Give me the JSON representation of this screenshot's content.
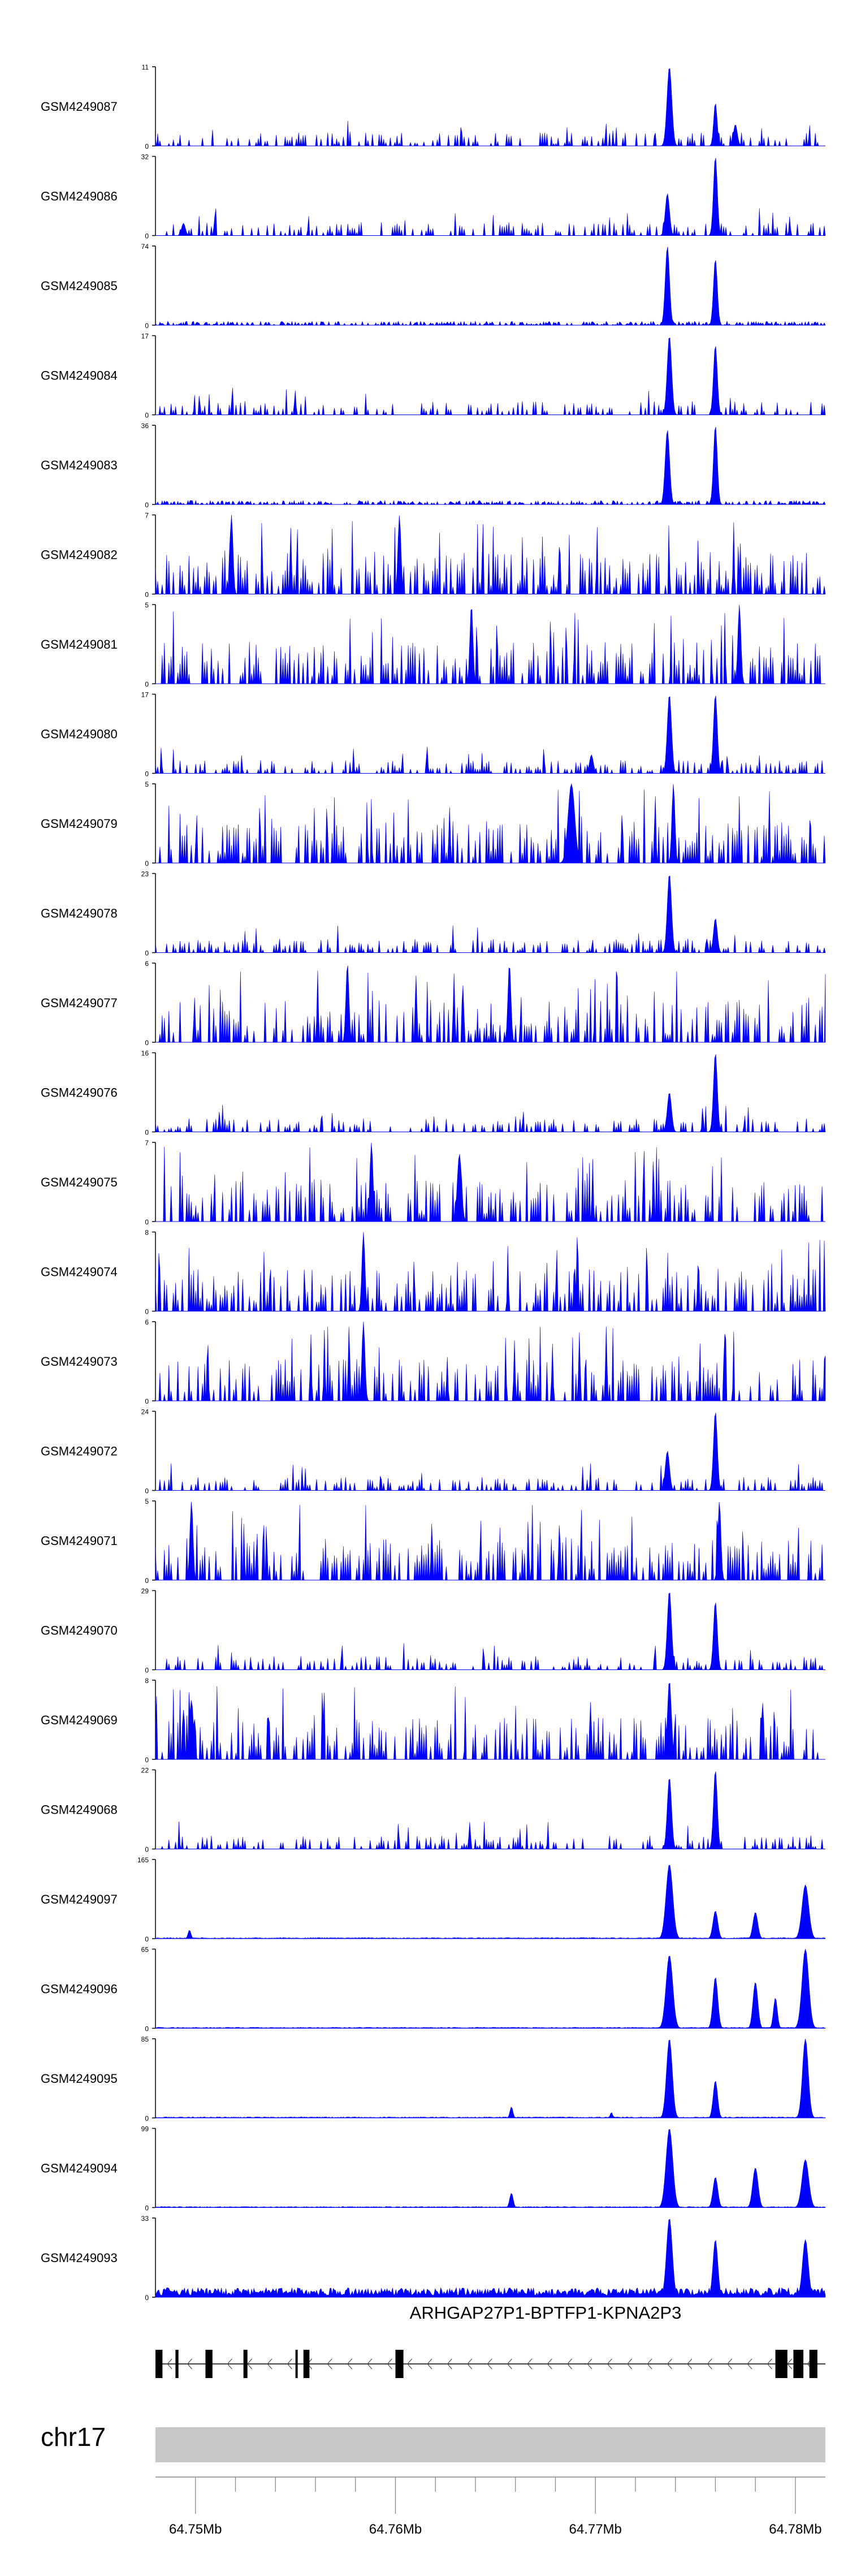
{
  "colors": {
    "signal": "#0000ff",
    "axis": "#000000",
    "ideogram": "#c8c8c8",
    "gene": "#000000"
  },
  "chart_data": {
    "type": "area",
    "xlabel": "",
    "ylabel": "",
    "x_range_bp": [
      64748000,
      64781500
    ],
    "ticks": {
      "values_bp": [
        64750000,
        64752000,
        64754000,
        64756000,
        64758000,
        64760000,
        64762000,
        64764000,
        64766000,
        64768000,
        64770000,
        64772000,
        64774000,
        64776000,
        64778000,
        64780000
      ],
      "labels": [
        {
          "bp": 64750000,
          "text": "64.75Mb"
        },
        {
          "bp": 64760000,
          "text": "64.76Mb"
        },
        {
          "bp": 64770000,
          "text": "64.77Mb"
        },
        {
          "bp": 64780000,
          "text": "64.78Mb"
        }
      ]
    },
    "chromosome": "chr17",
    "gene": {
      "name": "ARHGAP27P1-BPTFP1-KPNA2P3",
      "strand": "-",
      "start_bp": 64748000,
      "end_bp": 64781500,
      "exons_bp": [
        [
          64748000,
          64748350
        ],
        [
          64749000,
          64749150
        ],
        [
          64750500,
          64750850
        ],
        [
          64752400,
          64752600
        ],
        [
          64755000,
          64755100
        ],
        [
          64755400,
          64755700
        ],
        [
          64760000,
          64760400
        ],
        [
          64779000,
          64779600
        ],
        [
          64779900,
          64780400
        ],
        [
          64780700,
          64781100
        ]
      ]
    },
    "series": [
      {
        "name": "GSM4249087",
        "ymax": 11,
        "style": "sparse",
        "seed": 87,
        "peaks": [
          [
            64773700,
            11,
            250
          ],
          [
            64776000,
            6,
            180
          ],
          [
            64777000,
            3,
            200
          ]
        ]
      },
      {
        "name": "GSM4249086",
        "ymax": 32,
        "style": "sparse",
        "seed": 86,
        "peaks": [
          [
            64773600,
            17,
            220
          ],
          [
            64776000,
            32,
            200
          ],
          [
            64749400,
            5,
            200
          ]
        ]
      },
      {
        "name": "GSM4249085",
        "ymax": 74,
        "style": "lowbase",
        "seed": 85,
        "peaks": [
          [
            64773600,
            74,
            220
          ],
          [
            64776000,
            62,
            200
          ]
        ]
      },
      {
        "name": "GSM4249084",
        "ymax": 17,
        "style": "sparse",
        "seed": 84,
        "peaks": [
          [
            64773700,
            17,
            230
          ],
          [
            64776000,
            15,
            200
          ]
        ]
      },
      {
        "name": "GSM4249083",
        "ymax": 36,
        "style": "lowbase",
        "seed": 83,
        "peaks": [
          [
            64773600,
            34,
            230
          ],
          [
            64776000,
            36,
            200
          ]
        ]
      },
      {
        "name": "GSM4249082",
        "ymax": 7,
        "style": "noisy",
        "seed": 82,
        "peaks": [
          [
            64751800,
            7,
            160
          ],
          [
            64760200,
            7,
            160
          ]
        ]
      },
      {
        "name": "GSM4249081",
        "ymax": 5,
        "style": "noisy",
        "seed": 81,
        "peaks": [
          [
            64763800,
            5,
            160
          ],
          [
            64777200,
            5,
            160
          ]
        ]
      },
      {
        "name": "GSM4249080",
        "ymax": 17,
        "style": "sparse",
        "seed": 80,
        "peaks": [
          [
            64773700,
            17,
            220
          ],
          [
            64776000,
            17,
            200
          ],
          [
            64769800,
            4,
            200
          ]
        ]
      },
      {
        "name": "GSM4249079",
        "ymax": 5,
        "style": "noisy",
        "seed": 79,
        "peaks": [
          [
            64768800,
            5,
            350
          ],
          [
            64773900,
            5,
            160
          ]
        ]
      },
      {
        "name": "GSM4249078",
        "ymax": 23,
        "style": "sparse",
        "seed": 78,
        "peaks": [
          [
            64773700,
            23,
            220
          ],
          [
            64776000,
            10,
            200
          ]
        ]
      },
      {
        "name": "GSM4249077",
        "ymax": 6,
        "style": "noisy",
        "seed": 77,
        "peaks": [
          [
            64765700,
            6,
            160
          ],
          [
            64757600,
            6,
            160
          ]
        ]
      },
      {
        "name": "GSM4249076",
        "ymax": 16,
        "style": "sparse",
        "seed": 76,
        "peaks": [
          [
            64773700,
            8,
            220
          ],
          [
            64776000,
            16,
            200
          ]
        ]
      },
      {
        "name": "GSM4249075",
        "ymax": 7,
        "style": "noisy",
        "seed": 75,
        "peaks": [
          [
            64758800,
            7,
            160
          ],
          [
            64763200,
            6,
            220
          ]
        ]
      },
      {
        "name": "GSM4249074",
        "ymax": 8,
        "style": "noisy",
        "seed": 74,
        "peaks": [
          [
            64758400,
            8,
            160
          ]
        ]
      },
      {
        "name": "GSM4249073",
        "ymax": 6,
        "style": "noisy",
        "seed": 73,
        "peaks": [
          [
            64758400,
            6,
            160
          ]
        ]
      },
      {
        "name": "GSM4249072",
        "ymax": 24,
        "style": "sparse",
        "seed": 72,
        "peaks": [
          [
            64773600,
            12,
            220
          ],
          [
            64776000,
            24,
            200
          ]
        ]
      },
      {
        "name": "GSM4249071",
        "ymax": 5,
        "style": "noisy",
        "seed": 71,
        "peaks": [
          [
            64749800,
            5,
            160
          ],
          [
            64776200,
            5,
            160
          ]
        ]
      },
      {
        "name": "GSM4249070",
        "ymax": 29,
        "style": "sparse",
        "seed": 70,
        "peaks": [
          [
            64773700,
            29,
            220
          ],
          [
            64776000,
            25,
            200
          ]
        ]
      },
      {
        "name": "GSM4249069",
        "ymax": 8,
        "style": "noisy",
        "seed": 69,
        "peaks": [
          [
            64773700,
            8,
            200
          ],
          [
            64749800,
            6,
            200
          ]
        ]
      },
      {
        "name": "GSM4249068",
        "ymax": 22,
        "style": "sparse",
        "seed": 68,
        "peaks": [
          [
            64773700,
            20,
            220
          ],
          [
            64776000,
            22,
            200
          ]
        ]
      },
      {
        "name": "GSM4249097",
        "ymax": 165,
        "style": "smooth",
        "seed": 97,
        "peaks": [
          [
            64773700,
            155,
            350
          ],
          [
            64776000,
            58,
            250
          ],
          [
            64778000,
            55,
            250
          ],
          [
            64780500,
            112,
            350
          ],
          [
            64749700,
            18,
            150
          ]
        ]
      },
      {
        "name": "GSM4249096",
        "ymax": 65,
        "style": "smooth",
        "seed": 96,
        "peaks": [
          [
            64773700,
            60,
            350
          ],
          [
            64776000,
            42,
            250
          ],
          [
            64778000,
            38,
            250
          ],
          [
            64779000,
            25,
            200
          ],
          [
            64780500,
            65,
            350
          ]
        ]
      },
      {
        "name": "GSM4249095",
        "ymax": 85,
        "style": "smooth",
        "seed": 95,
        "peaks": [
          [
            64773700,
            85,
            300
          ],
          [
            64776000,
            40,
            230
          ],
          [
            64780500,
            85,
            300
          ],
          [
            64765800,
            12,
            150
          ],
          [
            64770800,
            6,
            120
          ]
        ]
      },
      {
        "name": "GSM4249094",
        "ymax": 99,
        "style": "smooth",
        "seed": 94,
        "peaks": [
          [
            64773700,
            99,
            350
          ],
          [
            64776000,
            38,
            250
          ],
          [
            64778000,
            50,
            280
          ],
          [
            64780500,
            60,
            350
          ],
          [
            64765800,
            18,
            180
          ]
        ]
      },
      {
        "name": "GSM4249093",
        "ymax": 33,
        "style": "dense",
        "seed": 93,
        "peaks": [
          [
            64773700,
            33,
            300
          ],
          [
            64776000,
            24,
            250
          ],
          [
            64780500,
            24,
            300
          ]
        ]
      }
    ]
  }
}
